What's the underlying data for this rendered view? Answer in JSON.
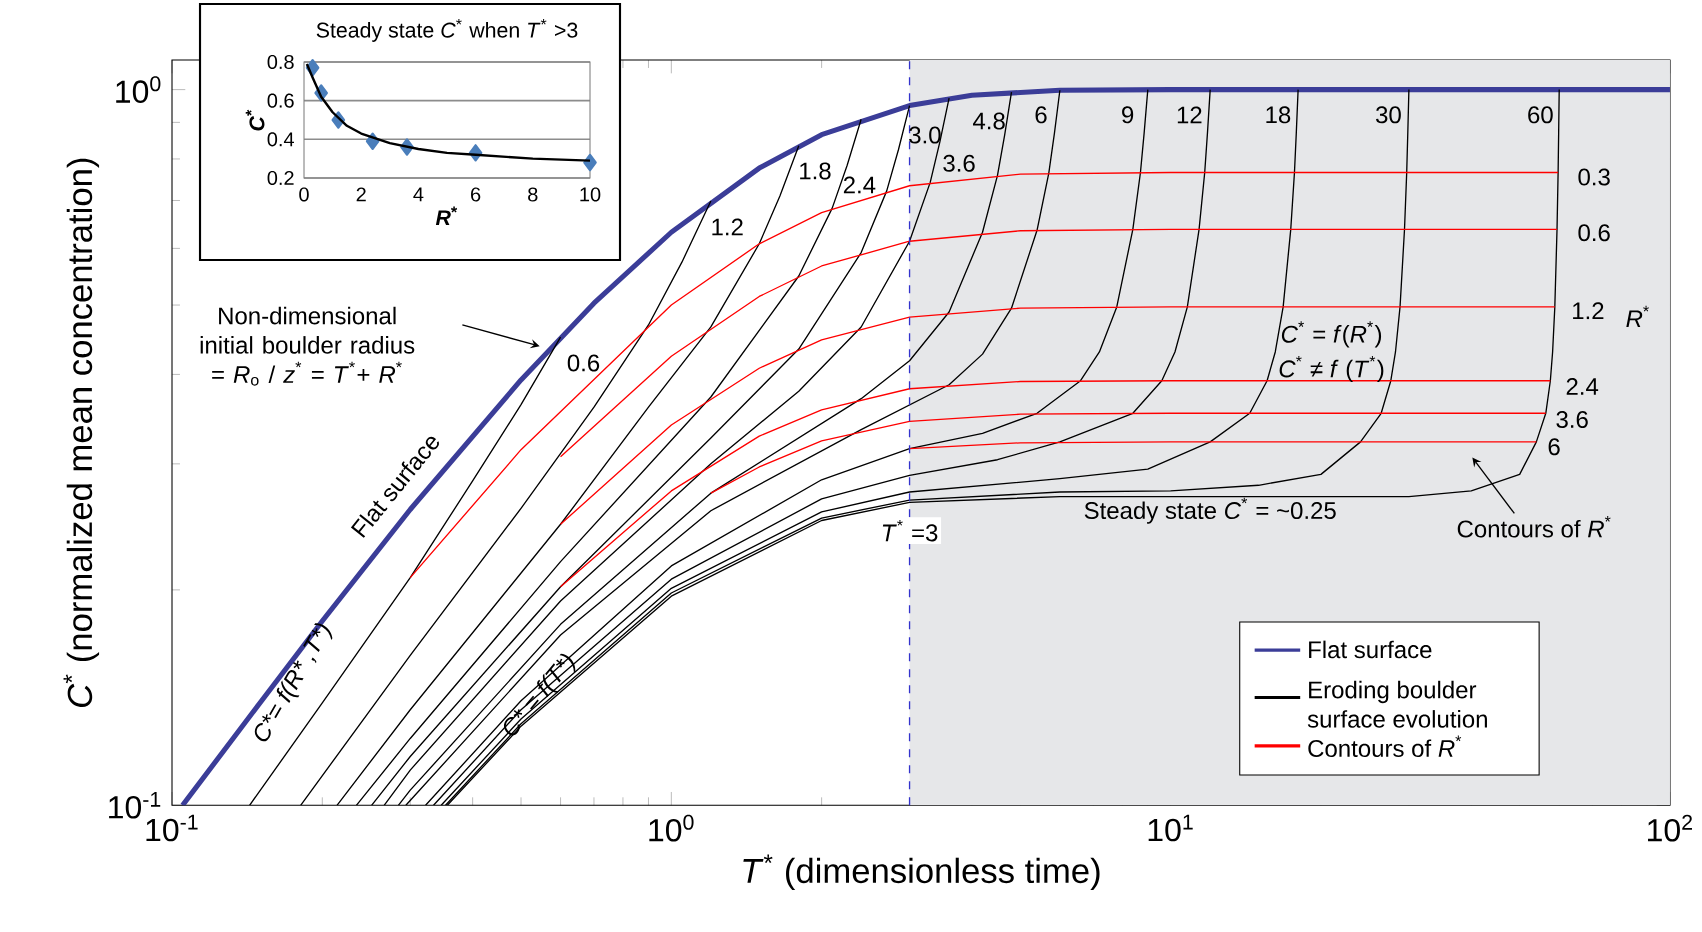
{
  "chart_data": [
    {
      "type": "line",
      "xlabel": "*T*$^{*}$ (dimensionless time)",
      "ylabel": "*C*$^{*}$ (normalized mean concentration)",
      "log": "xy",
      "xlim": [
        0.1,
        100
      ],
      "ylim": [
        0.1,
        1.1
      ],
      "xticks": [
        {
          "value": 0.1,
          "label": "10$^{-1}$"
        },
        {
          "value": 1,
          "label": "10$^{0}$"
        },
        {
          "value": 10,
          "label": "10$^{1}$"
        },
        {
          "value": 100,
          "label": "10$^{2}$"
        }
      ],
      "yticks": [
        {
          "value": 0.1,
          "label": "10$^{-1}$"
        },
        {
          "value": 1,
          "label": "10$^{0}$"
        }
      ],
      "legend": "bottom right",
      "marker": "none",
      "line_style": "solid",
      "bands": [
        {
          "axis": "x",
          "from": 3,
          "to": 100,
          "color": "#e6e7e9"
        }
      ],
      "ref_lines": [
        {
          "axis": "x",
          "value": 3,
          "label": "*T*$^{*}$ =3",
          "color": "#3333cc",
          "line_style": "dashed"
        }
      ],
      "series": [
        {
          "name": "Flat surface",
          "color": "#3b3d98",
          "x": [
            0.105,
            0.15,
            0.2,
            0.3,
            0.5,
            0.7,
            1,
            1.5,
            2,
            3,
            4,
            6,
            10,
            100
          ],
          "values": [
            0.1,
            0.139,
            0.181,
            0.259,
            0.393,
            0.503,
            0.632,
            0.777,
            0.865,
            0.95,
            0.982,
            0.998,
            1.0,
            1.0
          ]
        },
        {
          "name": "Eroding boulder surface evolution",
          "color": "#000000",
          "x": [
            0.143,
            0.2,
            0.3,
            0.4,
            0.5,
            0.6
          ],
          "values": [
            0.1,
            0.139,
            0.208,
            0.284,
            0.363,
            0.451
          ]
        },
        {
          "color": "#000000",
          "x": [
            0.181,
            0.3,
            0.5,
            0.7,
            0.9,
            1.05,
            1.2
          ],
          "values": [
            0.1,
            0.162,
            0.26,
            0.36,
            0.469,
            0.574,
            0.699
          ]
        },
        {
          "color": "#000000",
          "x": [
            0.214,
            0.3,
            0.6,
            0.9,
            1.2,
            1.5,
            1.65,
            1.8
          ],
          "values": [
            0.1,
            0.136,
            0.247,
            0.36,
            0.466,
            0.609,
            0.71,
            0.835
          ]
        },
        {
          "color": "#000000",
          "x": [
            0.234,
            0.3,
            0.6,
            1.2,
            1.8,
            2.1,
            2.25,
            2.4
          ],
          "values": [
            0.1,
            0.124,
            0.219,
            0.372,
            0.549,
            0.683,
            0.784,
            0.909
          ]
        },
        {
          "color": "#000000",
          "x": [
            0.251,
            0.3,
            0.6,
            1.2,
            1.8,
            2.4,
            2.7,
            2.85,
            3.0
          ],
          "values": [
            0.1,
            0.117,
            0.202,
            0.326,
            0.434,
            0.592,
            0.722,
            0.824,
            0.95
          ]
        },
        {
          "color": "#000000",
          "x": [
            0.266,
            0.3,
            0.6,
            1.2,
            1.8,
            2.4,
            3.0,
            3.3,
            3.45,
            3.6
          ],
          "values": [
            0.1,
            0.112,
            0.193,
            0.3,
            0.379,
            0.466,
            0.614,
            0.742,
            0.845,
            0.973
          ]
        },
        {
          "color": "#000000",
          "x": [
            0.284,
            0.3,
            0.6,
            1.2,
            2.4,
            3.0,
            3.6,
            4.2,
            4.5,
            4.65,
            4.8
          ],
          "values": [
            0.1,
            0.105,
            0.179,
            0.273,
            0.37,
            0.418,
            0.489,
            0.632,
            0.759,
            0.863,
            0.992
          ]
        },
        {
          "color": "#000000",
          "x": [
            0.294,
            0.6,
            1.2,
            2.4,
            3.6,
            4.2,
            4.8,
            5.4,
            5.7,
            5.85,
            6
          ],
          "values": [
            0.1,
            0.173,
            0.258,
            0.335,
            0.387,
            0.427,
            0.495,
            0.636,
            0.764,
            0.868,
            0.998
          ]
        },
        {
          "color": "#000000",
          "x": [
            0.322,
            0.5,
            1,
            2,
            3,
            4.2,
            5.4,
            6.6,
            7.2,
            7.8,
            8.4,
            8.7,
            8.85,
            9
          ],
          "values": [
            0.1,
            0.14,
            0.216,
            0.285,
            0.315,
            0.331,
            0.353,
            0.392,
            0.43,
            0.497,
            0.638,
            0.766,
            0.87,
            1.0
          ]
        },
        {
          "color": "#000000",
          "x": [
            0.334,
            0.5,
            1,
            2,
            3,
            4.5,
            6,
            8.4,
            9.6,
            10.2,
            10.8,
            11.4,
            11.7,
            11.85,
            12
          ],
          "values": [
            0.1,
            0.136,
            0.207,
            0.268,
            0.289,
            0.304,
            0.322,
            0.353,
            0.392,
            0.43,
            0.497,
            0.638,
            0.766,
            0.87,
            1.0
          ]
        },
        {
          "color": "#000000",
          "x": [
            0.346,
            0.5,
            1,
            2,
            3,
            6,
            9,
            12,
            14.4,
            15.6,
            16.2,
            16.8,
            17.4,
            17.7,
            17.85,
            18
          ],
          "values": [
            0.1,
            0.132,
            0.201,
            0.257,
            0.274,
            0.286,
            0.295,
            0.322,
            0.353,
            0.392,
            0.43,
            0.497,
            0.638,
            0.766,
            0.87,
            1.0
          ]
        },
        {
          "color": "#000000",
          "x": [
            0.353,
            0.5,
            1,
            2,
            3,
            6,
            10,
            15,
            20,
            24,
            26.4,
            27.6,
            28.2,
            28.8,
            29.4,
            29.7,
            29.85,
            30
          ],
          "values": [
            0.1,
            0.13,
            0.198,
            0.252,
            0.267,
            0.274,
            0.275,
            0.28,
            0.29,
            0.322,
            0.353,
            0.392,
            0.43,
            0.497,
            0.638,
            0.766,
            0.87,
            1.0
          ]
        },
        {
          "color": "#000000",
          "x": [
            0.356,
            0.5,
            1,
            2,
            3,
            6,
            30,
            40,
            50,
            54,
            56.4,
            57.6,
            58.2,
            58.8,
            59.4,
            59.7,
            59.85,
            60
          ],
          "values": [
            0.1,
            0.129,
            0.196,
            0.25,
            0.265,
            0.27,
            0.27,
            0.275,
            0.29,
            0.322,
            0.353,
            0.392,
            0.43,
            0.497,
            0.638,
            0.766,
            0.87,
            1.0
          ]
        },
        {
          "name": "Contours of *R*$^{*}$",
          "color": "#ff0000",
          "x": [
            0.3,
            0.5,
            1,
            1.5,
            2,
            3,
            5,
            10,
            59.7
          ],
          "values": [
            0.208,
            0.314,
            0.5,
            0.609,
            0.673,
            0.734,
            0.762,
            0.766,
            0.766
          ]
        },
        {
          "color": "#ff0000",
          "x": [
            0.6,
            1,
            1.5,
            2,
            3,
            5,
            10,
            59.4
          ],
          "values": [
            0.307,
            0.424,
            0.514,
            0.567,
            0.614,
            0.635,
            0.638,
            0.638
          ]
        },
        {
          "color": "#ff0000",
          "x": [
            0.6,
            1,
            1.5,
            2,
            3,
            5,
            10,
            58.8
          ],
          "values": [
            0.247,
            0.34,
            0.408,
            0.447,
            0.481,
            0.495,
            0.497,
            0.497
          ]
        },
        {
          "color": "#ff0000",
          "x": [
            0.6,
            1,
            1.5,
            2,
            3,
            5,
            10,
            57.6
          ],
          "values": [
            0.202,
            0.275,
            0.328,
            0.357,
            0.382,
            0.391,
            0.392,
            0.392
          ]
        },
        {
          "color": "#ff0000",
          "x": [
            1.2,
            1.5,
            2,
            3,
            5,
            10,
            56.4
          ],
          "values": [
            0.273,
            0.297,
            0.323,
            0.344,
            0.352,
            0.353,
            0.353
          ]
        },
        {
          "color": "#ff0000",
          "x": [
            3,
            5,
            10,
            54
          ],
          "values": [
            0.315,
            0.321,
            0.322,
            0.322
          ]
        }
      ],
      "annotations": [
        "Non-dimensional initial boulder radius = *R*$_{o}$ / *z*$^{*}$ = *T*$^{*}$+ *R*$^{*}$",
        "Flat surface",
        "C*= f(R* ,T*)",
        "C* = f(T*)",
        "*C*$^{*}$ = *f*(*R*$^{*}$)",
        "*C*$^{*}$ ≠ *f* (*T*$^{*}$)",
        "Steady state *C*$^{*}$ = ~0.25",
        "Contours of *R*$^{*}$",
        "*R*$^{*}$",
        "0.6",
        "1.2",
        "1.8",
        "2.4",
        "3.0",
        "3.6",
        "4.8",
        "6",
        "9",
        "12",
        "18",
        "30",
        "60",
        "0.3",
        "0.6",
        "1.2",
        "2.4",
        "3.6",
        "6"
      ]
    },
    {
      "type": "scatter",
      "title": "Steady state *C*$^{*}$ when *T*$^{*}$ >3",
      "xlabel": "*R*$^{*}$",
      "ylabel": "*C*$^{*}$",
      "xlim": [
        0,
        10
      ],
      "ylim": [
        0.2,
        0.8
      ],
      "xticks": [
        0,
        2,
        4,
        6,
        8,
        10
      ],
      "yticks": [
        0.2,
        0.4,
        0.6,
        0.8
      ],
      "grid": "y",
      "marker": "diamond",
      "series": [
        {
          "color": "#4a7ebb",
          "x": [
            0.3,
            0.6,
            1.2,
            2.4,
            3.6,
            6,
            10
          ],
          "values": [
            0.77,
            0.64,
            0.5,
            0.39,
            0.36,
            0.33,
            0.28
          ]
        },
        {
          "type": "line",
          "marker": "none",
          "color": "#000000",
          "x": [
            0.1,
            0.3,
            0.6,
            1,
            1.5,
            2,
            3,
            4,
            5,
            6,
            8,
            10
          ],
          "values": [
            0.79,
            0.72,
            0.62,
            0.54,
            0.47,
            0.43,
            0.38,
            0.35,
            0.33,
            0.32,
            0.3,
            0.29
          ]
        }
      ]
    }
  ]
}
